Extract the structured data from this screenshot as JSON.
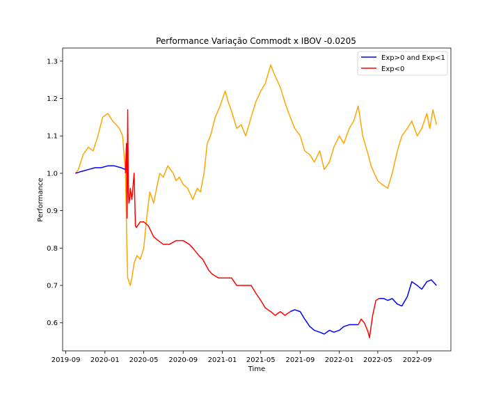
{
  "chart_data": {
    "type": "line",
    "title": "Performance Variação Commodt x IBOV -0.0205",
    "xlabel": "Time",
    "ylabel": "Performance",
    "x_ticks": [
      "2019-09",
      "2020-01",
      "2020-05",
      "2020-09",
      "2021-01",
      "2021-05",
      "2021-09",
      "2022-01",
      "2022-05",
      "2022-09"
    ],
    "y_ticks": [
      "0.6",
      "0.7",
      "0.8",
      "0.9",
      "1.0",
      "1.1",
      "1.2",
      "1.3"
    ],
    "xlim": [
      "2019-08-22",
      "2022-12-15"
    ],
    "ylim": [
      0.525,
      1.335
    ],
    "grid": false,
    "legend": {
      "placement": "top-right",
      "entries": [
        {
          "label": "Exp>0 and Exp<1",
          "color": "#0000ff"
        },
        {
          "label": "Exp<0",
          "color": "#ff0000"
        }
      ]
    },
    "series": [
      {
        "color": "#ffa500",
        "x": [
          "2019-10-01",
          "2019-10-10",
          "2019-10-25",
          "2019-11-10",
          "2019-11-25",
          "2019-12-10",
          "2019-12-25",
          "2020-01-10",
          "2020-01-25",
          "2020-02-05",
          "2020-02-15",
          "2020-02-25",
          "2020-03-05",
          "2020-03-09",
          "2020-03-12",
          "2020-03-16",
          "2020-03-20",
          "2020-03-25",
          "2020-04-01",
          "2020-04-10",
          "2020-04-20",
          "2020-05-01",
          "2020-05-10",
          "2020-05-20",
          "2020-06-01",
          "2020-06-10",
          "2020-06-20",
          "2020-07-01",
          "2020-07-15",
          "2020-08-01",
          "2020-08-10",
          "2020-08-20",
          "2020-09-01",
          "2020-09-15",
          "2020-10-01",
          "2020-10-15",
          "2020-10-25",
          "2020-11-05",
          "2020-11-15",
          "2020-11-25",
          "2020-12-10",
          "2020-12-25",
          "2021-01-10",
          "2021-01-20",
          "2021-02-01",
          "2021-02-15",
          "2021-03-01",
          "2021-03-15",
          "2021-04-01",
          "2021-04-15",
          "2021-05-01",
          "2021-05-15",
          "2021-06-01",
          "2021-06-10",
          "2021-06-20",
          "2021-07-01",
          "2021-07-15",
          "2021-08-01",
          "2021-08-15",
          "2021-09-01",
          "2021-09-15",
          "2021-10-01",
          "2021-10-15",
          "2021-11-01",
          "2021-11-15",
          "2021-12-01",
          "2021-12-15",
          "2022-01-01",
          "2022-01-15",
          "2022-02-01",
          "2022-02-15",
          "2022-03-01",
          "2022-03-15",
          "2022-04-01",
          "2022-04-10",
          "2022-04-20",
          "2022-05-01",
          "2022-05-15",
          "2022-06-01",
          "2022-06-15",
          "2022-07-01",
          "2022-07-15",
          "2022-08-01",
          "2022-08-15",
          "2022-09-01",
          "2022-09-15",
          "2022-10-01",
          "2022-10-10",
          "2022-10-20",
          "2022-10-31"
        ],
        "y": [
          1.0,
          1.01,
          1.05,
          1.07,
          1.06,
          1.1,
          1.15,
          1.16,
          1.14,
          1.13,
          1.12,
          1.1,
          1.0,
          0.82,
          0.72,
          0.71,
          0.7,
          0.72,
          0.76,
          0.78,
          0.77,
          0.8,
          0.88,
          0.95,
          0.92,
          0.96,
          1.0,
          0.99,
          1.02,
          1.0,
          0.98,
          0.99,
          0.97,
          0.96,
          0.93,
          0.96,
          0.95,
          1.0,
          1.08,
          1.1,
          1.15,
          1.18,
          1.22,
          1.19,
          1.16,
          1.12,
          1.13,
          1.1,
          1.15,
          1.19,
          1.22,
          1.24,
          1.29,
          1.27,
          1.25,
          1.23,
          1.19,
          1.15,
          1.12,
          1.1,
          1.06,
          1.05,
          1.03,
          1.06,
          1.01,
          1.03,
          1.07,
          1.1,
          1.08,
          1.12,
          1.14,
          1.18,
          1.1,
          1.05,
          1.02,
          1.0,
          0.98,
          0.97,
          0.96,
          1.0,
          1.06,
          1.1,
          1.12,
          1.14,
          1.1,
          1.12,
          1.16,
          1.12,
          1.17,
          1.13
        ]
      },
      {
        "color": "#0000ff",
        "x": [
          "2019-10-01",
          "2019-10-20",
          "2019-11-10",
          "2019-12-01",
          "2019-12-20",
          "2020-01-10",
          "2020-01-30",
          "2020-02-20",
          "2020-03-05"
        ],
        "y": [
          1.0,
          1.005,
          1.01,
          1.015,
          1.015,
          1.02,
          1.02,
          1.015,
          1.01
        ]
      },
      {
        "color": "#ff0000",
        "x": [
          "2020-03-05",
          "2020-03-08",
          "2020-03-10",
          "2020-03-12",
          "2020-03-14",
          "2020-03-16",
          "2020-03-18",
          "2020-03-20",
          "2020-03-25",
          "2020-04-01",
          "2020-04-05",
          "2020-04-08",
          "2020-04-12",
          "2020-04-20",
          "2020-05-01",
          "2020-05-15",
          "2020-06-01",
          "2020-06-15",
          "2020-07-01",
          "2020-07-20",
          "2020-08-10",
          "2020-09-01",
          "2020-09-20",
          "2020-10-01",
          "2020-10-20",
          "2020-11-01",
          "2020-11-20",
          "2020-12-01",
          "2020-12-20",
          "2021-01-10",
          "2021-01-30",
          "2021-02-15",
          "2021-03-01",
          "2021-03-15",
          "2021-04-01",
          "2021-04-15",
          "2021-05-01",
          "2021-05-15",
          "2021-06-01",
          "2021-06-15",
          "2021-07-01",
          "2021-07-15",
          "2021-08-01"
        ],
        "y": [
          1.0,
          1.08,
          0.88,
          1.17,
          0.95,
          0.92,
          0.93,
          0.96,
          0.93,
          1.0,
          0.86,
          0.855,
          0.86,
          0.87,
          0.87,
          0.86,
          0.83,
          0.82,
          0.81,
          0.81,
          0.82,
          0.82,
          0.81,
          0.8,
          0.78,
          0.77,
          0.74,
          0.73,
          0.72,
          0.72,
          0.72,
          0.7,
          0.7,
          0.7,
          0.7,
          0.68,
          0.66,
          0.64,
          0.63,
          0.62,
          0.63,
          0.62,
          0.63
        ]
      },
      {
        "color": "#0000ff",
        "x": [
          "2021-08-01",
          "2021-08-15",
          "2021-09-01",
          "2021-09-15",
          "2021-10-01",
          "2021-10-15",
          "2021-11-01",
          "2021-11-15",
          "2021-12-01",
          "2021-12-15",
          "2022-01-01",
          "2022-01-15",
          "2022-02-01",
          "2022-02-15",
          "2022-03-01"
        ],
        "y": [
          0.63,
          0.635,
          0.63,
          0.61,
          0.59,
          0.58,
          0.575,
          0.57,
          0.58,
          0.575,
          0.58,
          0.59,
          0.595,
          0.595,
          0.595
        ]
      },
      {
        "color": "#ff0000",
        "x": [
          "2022-03-01",
          "2022-03-10",
          "2022-03-20",
          "2022-04-01",
          "2022-04-05",
          "2022-04-10",
          "2022-04-15",
          "2022-04-25",
          "2022-05-05"
        ],
        "y": [
          0.595,
          0.61,
          0.6,
          0.575,
          0.56,
          0.59,
          0.62,
          0.66,
          0.665
        ]
      },
      {
        "color": "#0000ff",
        "x": [
          "2022-05-05",
          "2022-05-20",
          "2022-06-01",
          "2022-06-15",
          "2022-07-01",
          "2022-07-15",
          "2022-08-01",
          "2022-08-15",
          "2022-09-01",
          "2022-09-15",
          "2022-10-01",
          "2022-10-15",
          "2022-10-31"
        ],
        "y": [
          0.665,
          0.665,
          0.66,
          0.665,
          0.65,
          0.645,
          0.67,
          0.71,
          0.7,
          0.69,
          0.71,
          0.715,
          0.7
        ]
      }
    ]
  }
}
